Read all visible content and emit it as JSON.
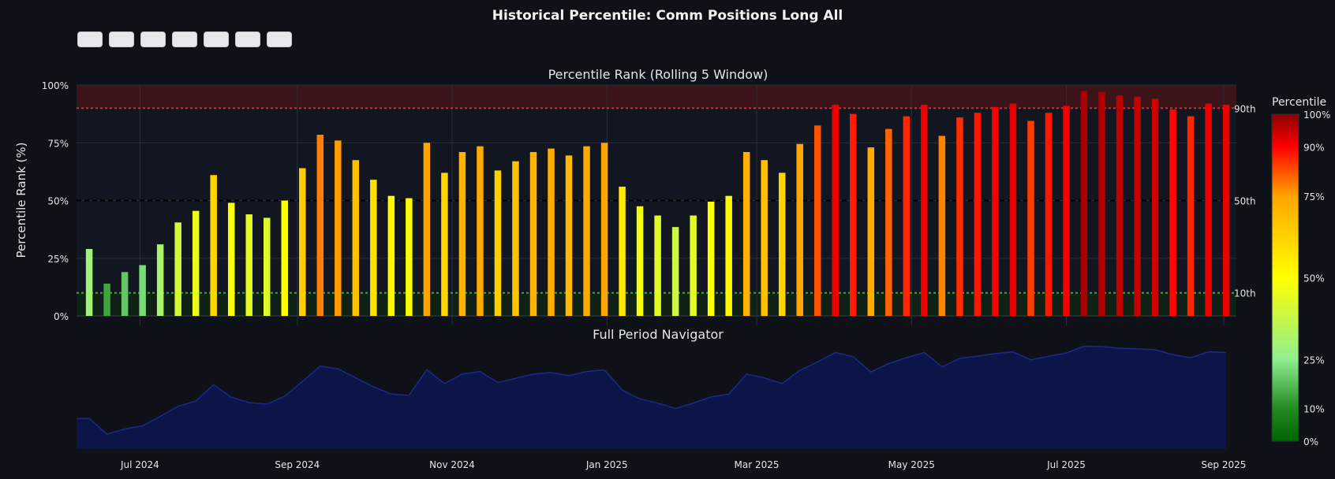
{
  "chart_data": {
    "type": "bar",
    "title": "Historical Percentile: Comm Positions Long All",
    "subtitle": "Percentile Rank (Rolling 5 Window)",
    "ylabel": "Percentile Rank (%)",
    "ylim": [
      0,
      100
    ],
    "yticks": [
      0,
      25,
      50,
      75,
      100
    ],
    "ytick_suffix": "%",
    "xlim": [
      "2024-06-06",
      "2025-09-06"
    ],
    "xticks": [
      {
        "date": "2024-07-01",
        "label": "Jul 2024"
      },
      {
        "date": "2024-09-01",
        "label": "Sep 2024"
      },
      {
        "date": "2024-11-01",
        "label": "Nov 2024"
      },
      {
        "date": "2025-01-01",
        "label": "Jan 2025"
      },
      {
        "date": "2025-03-01",
        "label": "Mar 2025"
      },
      {
        "date": "2025-05-01",
        "label": "May 2025"
      },
      {
        "date": "2025-07-01",
        "label": "Jul 2025"
      },
      {
        "date": "2025-09-01",
        "label": "Sep 2025"
      }
    ],
    "x": [
      "2024-06-11",
      "2024-06-18",
      "2024-06-25",
      "2024-07-02",
      "2024-07-09",
      "2024-07-16",
      "2024-07-23",
      "2024-07-30",
      "2024-08-06",
      "2024-08-13",
      "2024-08-20",
      "2024-08-27",
      "2024-09-03",
      "2024-09-10",
      "2024-09-17",
      "2024-09-24",
      "2024-10-01",
      "2024-10-08",
      "2024-10-15",
      "2024-10-22",
      "2024-10-29",
      "2024-11-05",
      "2024-11-12",
      "2024-11-19",
      "2024-11-26",
      "2024-12-03",
      "2024-12-10",
      "2024-12-17",
      "2024-12-24",
      "2024-12-31",
      "2025-01-07",
      "2025-01-14",
      "2025-01-21",
      "2025-01-28",
      "2025-02-04",
      "2025-02-11",
      "2025-02-18",
      "2025-02-25",
      "2025-03-04",
      "2025-03-11",
      "2025-03-18",
      "2025-03-25",
      "2025-04-01",
      "2025-04-08",
      "2025-04-15",
      "2025-04-22",
      "2025-04-29",
      "2025-05-06",
      "2025-05-13",
      "2025-05-20",
      "2025-05-27",
      "2025-06-03",
      "2025-06-10",
      "2025-06-17",
      "2025-06-24",
      "2025-07-01",
      "2025-07-08",
      "2025-07-15",
      "2025-07-22",
      "2025-07-29",
      "2025-08-05",
      "2025-08-12",
      "2025-08-19",
      "2025-08-26",
      "2025-09-02"
    ],
    "values": [
      29,
      14,
      19,
      22,
      31,
      40.5,
      45.5,
      61,
      49,
      44,
      42.5,
      50,
      64,
      78.5,
      76,
      67.5,
      59,
      52,
      51,
      75,
      62,
      71,
      73.5,
      63,
      67,
      71,
      72.5,
      69.5,
      73.5,
      75,
      56,
      47.5,
      43.5,
      38.5,
      43.5,
      49.5,
      52,
      71,
      67.5,
      62,
      74.5,
      82.5,
      91.5,
      87.5,
      73,
      81,
      86.5,
      91.5,
      78,
      86,
      88,
      90.5,
      92,
      84.5,
      88,
      91,
      97.5,
      97,
      95.5,
      95,
      94,
      89.5,
      86.5,
      92,
      91.5
    ],
    "reference_lines": [
      {
        "value": 90,
        "label": "90th",
        "color": "#ff1a1a",
        "style": "dotted"
      },
      {
        "value": 50,
        "label": "50th",
        "color": "#000000",
        "style": "dashed"
      },
      {
        "value": 10,
        "label": "10th",
        "color": "#1fbf1f",
        "style": "dotted"
      }
    ],
    "bands": [
      {
        "from": 90,
        "to": 100,
        "color": "#3a1418"
      },
      {
        "from": 0,
        "to": 10,
        "color": "#0f2015"
      }
    ],
    "colorscale": {
      "title": "Percentile",
      "stops": [
        {
          "value": 0,
          "color": "#006400"
        },
        {
          "value": 10,
          "color": "#228b22"
        },
        {
          "value": 25,
          "color": "#90ee90"
        },
        {
          "value": 50,
          "color": "#ffff00"
        },
        {
          "value": 75,
          "color": "#ffa500"
        },
        {
          "value": 90,
          "color": "#ff0000"
        },
        {
          "value": 100,
          "color": "#8b0000"
        }
      ],
      "ticks": [
        {
          "value": 0,
          "label": "0%"
        },
        {
          "value": 10,
          "label": "10%"
        },
        {
          "value": 25,
          "label": "25%"
        },
        {
          "value": 50,
          "label": "50%"
        },
        {
          "value": 75,
          "label": "75%"
        },
        {
          "value": 90,
          "label": "90%"
        },
        {
          "value": 100,
          "label": "100%"
        }
      ]
    },
    "grid": true,
    "navigator": {
      "title": "Full Period Navigator",
      "type": "area",
      "fill": "#0c1547",
      "line": "#1c2a8a"
    }
  },
  "range_selector": {
    "count": 7,
    "bg": "#e7e9ec"
  }
}
